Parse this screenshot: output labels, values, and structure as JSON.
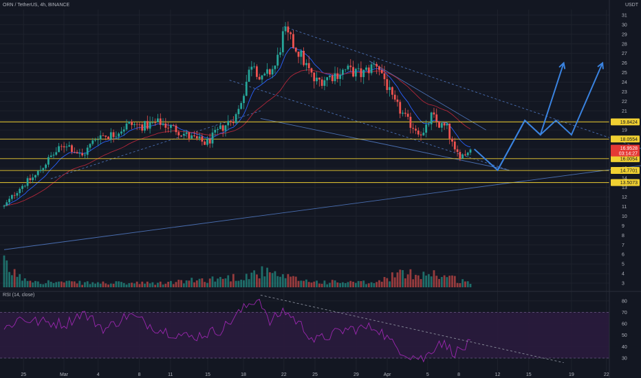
{
  "header": {
    "symbol": "ORN / TetherUS, 4h, BINANCE",
    "currency": "USDT"
  },
  "rsi_panel": {
    "label": "RSI (14, close)"
  },
  "colors": {
    "background": "#131722",
    "up": "#26a69a",
    "down": "#ef5350",
    "level_line": "#f0d032",
    "ema_fast": "#2962ff",
    "ema_slow": "#b2273a",
    "projection": "#3a83e0",
    "rsi_line": "#9c27b0",
    "rsi_band": "#2a1b3d",
    "current_price": "#e53935"
  },
  "chart_data": [
    {
      "type": "candlestick",
      "title": "",
      "x_ticks": [
        "25",
        "Mar",
        "4",
        "8",
        "11",
        "15",
        "18",
        "22",
        "25",
        "29",
        "Apr",
        "5",
        "8",
        "12",
        "15",
        "19",
        "22"
      ],
      "y_ticks": [
        3,
        4,
        5,
        6,
        7,
        8,
        9,
        10,
        11,
        12,
        13,
        14,
        15,
        16,
        17,
        18,
        19,
        20,
        21,
        22,
        23,
        24,
        25,
        26,
        27,
        28,
        29,
        30,
        31
      ],
      "ylim": [
        2.7,
        31.8
      ],
      "price_levels": [
        19.8424,
        18.0554,
        16.0054,
        14.7701,
        13.5073
      ],
      "price_level_labels": [
        "19.8424",
        "18.0554",
        "16.0054",
        "14.7701",
        "13.5073"
      ],
      "current_price": {
        "value": 16.9528,
        "label": "16.9528",
        "countdown": "03:14:27"
      },
      "ohlc_path": [
        {
          "x": 0,
          "y": 11
        },
        {
          "x": 2,
          "y": 13
        },
        {
          "x": 4,
          "y": 14.2
        },
        {
          "x": 6,
          "y": 16.2
        },
        {
          "x": 8,
          "y": 17.6
        },
        {
          "x": 10,
          "y": 16.2
        },
        {
          "x": 12,
          "y": 18.4
        },
        {
          "x": 14,
          "y": 18.5
        },
        {
          "x": 16,
          "y": 19.6
        },
        {
          "x": 18,
          "y": 19.4
        },
        {
          "x": 20,
          "y": 19.8
        },
        {
          "x": 22,
          "y": 19.1
        },
        {
          "x": 24,
          "y": 18.2
        },
        {
          "x": 26,
          "y": 17.6
        },
        {
          "x": 28,
          "y": 19.2
        },
        {
          "x": 30,
          "y": 20.6
        },
        {
          "x": 32,
          "y": 26.5
        },
        {
          "x": 33,
          "y": 24.0
        },
        {
          "x": 35,
          "y": 25.8
        },
        {
          "x": 36,
          "y": 29.3
        },
        {
          "x": 38,
          "y": 27.0
        },
        {
          "x": 40,
          "y": 24.0
        },
        {
          "x": 42,
          "y": 24.6
        },
        {
          "x": 44,
          "y": 25.3
        },
        {
          "x": 46,
          "y": 24.8
        },
        {
          "x": 48,
          "y": 26.0
        },
        {
          "x": 49,
          "y": 24.2
        },
        {
          "x": 50,
          "y": 22.0
        },
        {
          "x": 51,
          "y": 21.0
        },
        {
          "x": 52,
          "y": 19.8
        },
        {
          "x": 54,
          "y": 18.5
        },
        {
          "x": 55,
          "y": 20.5
        },
        {
          "x": 56,
          "y": 19.5
        },
        {
          "x": 57,
          "y": 19.2
        },
        {
          "x": 58,
          "y": 16.6
        },
        {
          "x": 59,
          "y": 16.4
        },
        {
          "x": 60,
          "y": 16.9
        }
      ],
      "volume_profile": [
        {
          "x": 0,
          "v": 1.0
        },
        {
          "x": 2,
          "v": 0.45
        },
        {
          "x": 5,
          "v": 0.25
        },
        {
          "x": 10,
          "v": 0.2
        },
        {
          "x": 20,
          "v": 0.18
        },
        {
          "x": 31,
          "v": 0.5
        },
        {
          "x": 33,
          "v": 0.7
        },
        {
          "x": 36,
          "v": 0.45
        },
        {
          "x": 40,
          "v": 0.25
        },
        {
          "x": 48,
          "v": 0.2
        },
        {
          "x": 50,
          "v": 0.55
        },
        {
          "x": 55,
          "v": 0.65
        },
        {
          "x": 60,
          "v": 0.2
        }
      ],
      "trendlines": [
        {
          "from": [
            0,
            6.5
          ],
          "to": [
            84,
            15.5
          ],
          "style": "solid"
        },
        {
          "from": [
            6,
            13.9
          ],
          "to": [
            33,
            21.0
          ],
          "style": "dashed"
        },
        {
          "from": [
            33,
            20.2
          ],
          "to": [
            65,
            14.8
          ],
          "style": "solid"
        },
        {
          "from": [
            29,
            24.2
          ],
          "to": [
            65,
            14.8
          ],
          "style": "dashed"
        },
        {
          "from": [
            36,
            29.8
          ],
          "to": [
            84,
            16.5
          ],
          "style": "dashed"
        },
        {
          "from": [
            47,
            26.2
          ],
          "to": [
            62,
            19.0
          ],
          "style": "solid"
        }
      ],
      "projections": [
        {
          "points": [
            [
              60.5,
              17.0
            ],
            [
              63.5,
              14.8
            ],
            [
              67,
              20.0
            ],
            [
              69,
              18.5
            ],
            [
              72,
              26.0
            ]
          ]
        },
        {
          "points": [
            [
              63.5,
              14.8
            ],
            [
              67,
              20.0
            ],
            [
              69,
              18.5
            ],
            [
              71,
              20.0
            ],
            [
              73,
              18.5
            ],
            [
              77,
              26.0
            ]
          ]
        }
      ]
    },
    {
      "type": "line",
      "title": "RSI (14, close)",
      "y_ticks": [
        30,
        40,
        50,
        60,
        70,
        80
      ],
      "ylim": [
        25,
        88
      ],
      "bands": [
        30,
        70
      ],
      "rsi_path": [
        {
          "x": 0,
          "y": 55
        },
        {
          "x": 2,
          "y": 65
        },
        {
          "x": 4,
          "y": 62
        },
        {
          "x": 8,
          "y": 60
        },
        {
          "x": 10,
          "y": 70
        },
        {
          "x": 13,
          "y": 55
        },
        {
          "x": 16,
          "y": 68
        },
        {
          "x": 20,
          "y": 55
        },
        {
          "x": 24,
          "y": 48
        },
        {
          "x": 28,
          "y": 55
        },
        {
          "x": 30,
          "y": 68
        },
        {
          "x": 32,
          "y": 80
        },
        {
          "x": 33,
          "y": 82
        },
        {
          "x": 34,
          "y": 60
        },
        {
          "x": 36,
          "y": 72
        },
        {
          "x": 38,
          "y": 60
        },
        {
          "x": 40,
          "y": 45
        },
        {
          "x": 44,
          "y": 55
        },
        {
          "x": 48,
          "y": 57
        },
        {
          "x": 50,
          "y": 42
        },
        {
          "x": 52,
          "y": 33
        },
        {
          "x": 54,
          "y": 29
        },
        {
          "x": 56,
          "y": 45
        },
        {
          "x": 58,
          "y": 35
        },
        {
          "x": 59,
          "y": 38
        },
        {
          "x": 60,
          "y": 43
        }
      ],
      "trendline": {
        "from": [
          33,
          85
        ],
        "to": [
          72,
          26
        ],
        "style": "dashed"
      }
    }
  ]
}
